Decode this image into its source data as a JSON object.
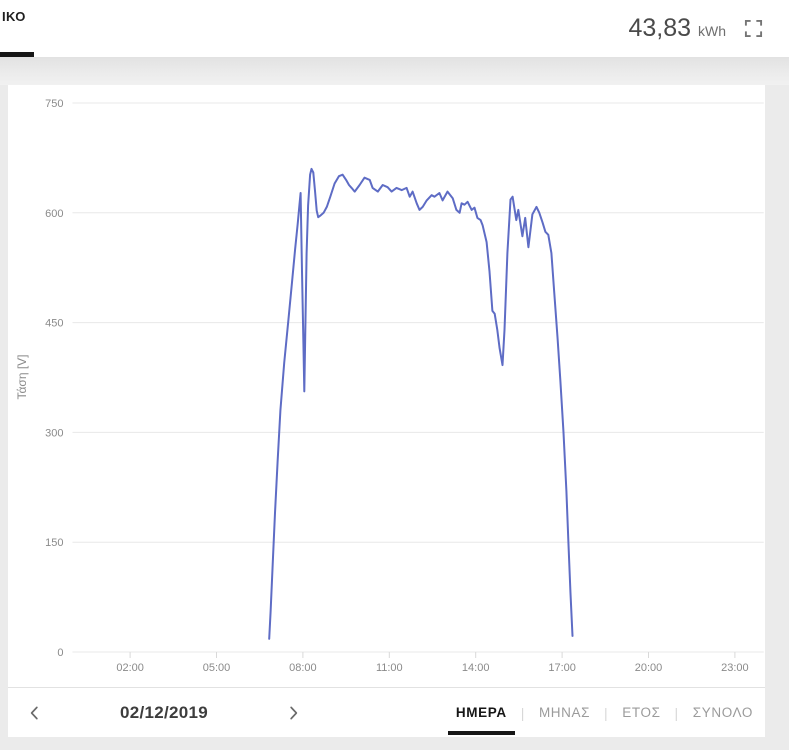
{
  "header": {
    "title_fragment": "ΙΚΟ",
    "energy_value": "43,83",
    "energy_unit": "kWh",
    "fullscreen_icon": "fullscreen-expand-icon"
  },
  "colors": {
    "page_bg": "#ebebeb",
    "card_bg": "#ffffff",
    "accent_dark": "#161616",
    "inactive_tab": "#9b9b9b"
  },
  "chart_data": {
    "type": "line",
    "title": "",
    "xlabel": "",
    "ylabel": "Τάση [V]",
    "x_ticks": [
      "02:00",
      "05:00",
      "08:00",
      "11:00",
      "14:00",
      "17:00",
      "20:00",
      "23:00"
    ],
    "x_tick_hours": [
      2,
      5,
      8,
      11,
      14,
      17,
      20,
      23
    ],
    "y_ticks": [
      0,
      150,
      300,
      450,
      600,
      750
    ],
    "xlim_hours": [
      0,
      24
    ],
    "ylim": [
      0,
      750
    ],
    "grid": "horizontal",
    "legend": "none",
    "line_color": "#5e6cc5",
    "colors": {
      "grid": "#e8e8e8",
      "tick_text": "#8a8a8a"
    },
    "series": [
      {
        "name": "Τάση [V]",
        "points": [
          [
            6.83,
            18
          ],
          [
            6.88,
            55
          ],
          [
            6.95,
            120
          ],
          [
            7.03,
            190
          ],
          [
            7.12,
            260
          ],
          [
            7.22,
            330
          ],
          [
            7.35,
            395
          ],
          [
            7.5,
            455
          ],
          [
            7.62,
            505
          ],
          [
            7.73,
            550
          ],
          [
            7.82,
            585
          ],
          [
            7.88,
            610
          ],
          [
            7.92,
            627
          ],
          [
            7.97,
            520
          ],
          [
            8.02,
            415
          ],
          [
            8.05,
            356
          ],
          [
            8.08,
            430
          ],
          [
            8.13,
            545
          ],
          [
            8.18,
            610
          ],
          [
            8.25,
            652
          ],
          [
            8.3,
            660
          ],
          [
            8.36,
            655
          ],
          [
            8.42,
            630
          ],
          [
            8.48,
            603
          ],
          [
            8.53,
            594
          ],
          [
            8.6,
            596
          ],
          [
            8.72,
            600
          ],
          [
            8.83,
            608
          ],
          [
            8.95,
            622
          ],
          [
            9.1,
            640
          ],
          [
            9.25,
            650
          ],
          [
            9.38,
            652
          ],
          [
            9.5,
            645
          ],
          [
            9.6,
            638
          ],
          [
            9.69,
            634
          ],
          [
            9.8,
            629
          ],
          [
            9.97,
            638
          ],
          [
            10.14,
            648
          ],
          [
            10.32,
            645
          ],
          [
            10.42,
            634
          ],
          [
            10.6,
            629
          ],
          [
            10.77,
            638
          ],
          [
            10.94,
            635
          ],
          [
            11.08,
            629
          ],
          [
            11.25,
            634
          ],
          [
            11.43,
            631
          ],
          [
            11.6,
            634
          ],
          [
            11.71,
            622
          ],
          [
            11.81,
            629
          ],
          [
            11.95,
            613
          ],
          [
            12.05,
            604
          ],
          [
            12.16,
            608
          ],
          [
            12.3,
            617
          ],
          [
            12.47,
            624
          ],
          [
            12.57,
            622
          ],
          [
            12.74,
            627
          ],
          [
            12.85,
            617
          ],
          [
            13.02,
            629
          ],
          [
            13.2,
            620
          ],
          [
            13.33,
            604
          ],
          [
            13.44,
            600
          ],
          [
            13.51,
            613
          ],
          [
            13.61,
            611
          ],
          [
            13.72,
            615
          ],
          [
            13.86,
            604
          ],
          [
            13.96,
            607
          ],
          [
            14.06,
            593
          ],
          [
            14.17,
            590
          ],
          [
            14.24,
            583
          ],
          [
            14.38,
            560
          ],
          [
            14.48,
            520
          ],
          [
            14.58,
            466
          ],
          [
            14.66,
            462
          ],
          [
            14.75,
            440
          ],
          [
            14.83,
            415
          ],
          [
            14.93,
            392
          ],
          [
            15.0,
            440
          ],
          [
            15.1,
            545
          ],
          [
            15.21,
            618
          ],
          [
            15.28,
            622
          ],
          [
            15.41,
            590
          ],
          [
            15.48,
            604
          ],
          [
            15.62,
            568
          ],
          [
            15.72,
            593
          ],
          [
            15.83,
            553
          ],
          [
            15.97,
            598
          ],
          [
            16.11,
            608
          ],
          [
            16.21,
            600
          ],
          [
            16.32,
            587
          ],
          [
            16.42,
            574
          ],
          [
            16.52,
            570
          ],
          [
            16.63,
            545
          ],
          [
            16.73,
            490
          ],
          [
            16.84,
            430
          ],
          [
            16.94,
            370
          ],
          [
            17.05,
            300
          ],
          [
            17.15,
            220
          ],
          [
            17.22,
            150
          ],
          [
            17.29,
            80
          ],
          [
            17.36,
            22
          ]
        ]
      }
    ]
  },
  "footer": {
    "date": "02/12/2019",
    "prev_icon": "chevron-left-icon",
    "next_icon": "chevron-right-icon",
    "tabs": [
      {
        "id": "day",
        "label": "ΗΜΕΡΑ",
        "active": true
      },
      {
        "id": "month",
        "label": "ΜΗΝΑΣ",
        "active": false
      },
      {
        "id": "year",
        "label": "ΕΤΟΣ",
        "active": false
      },
      {
        "id": "total",
        "label": "ΣΥΝΟΛΟ",
        "active": false
      }
    ]
  }
}
